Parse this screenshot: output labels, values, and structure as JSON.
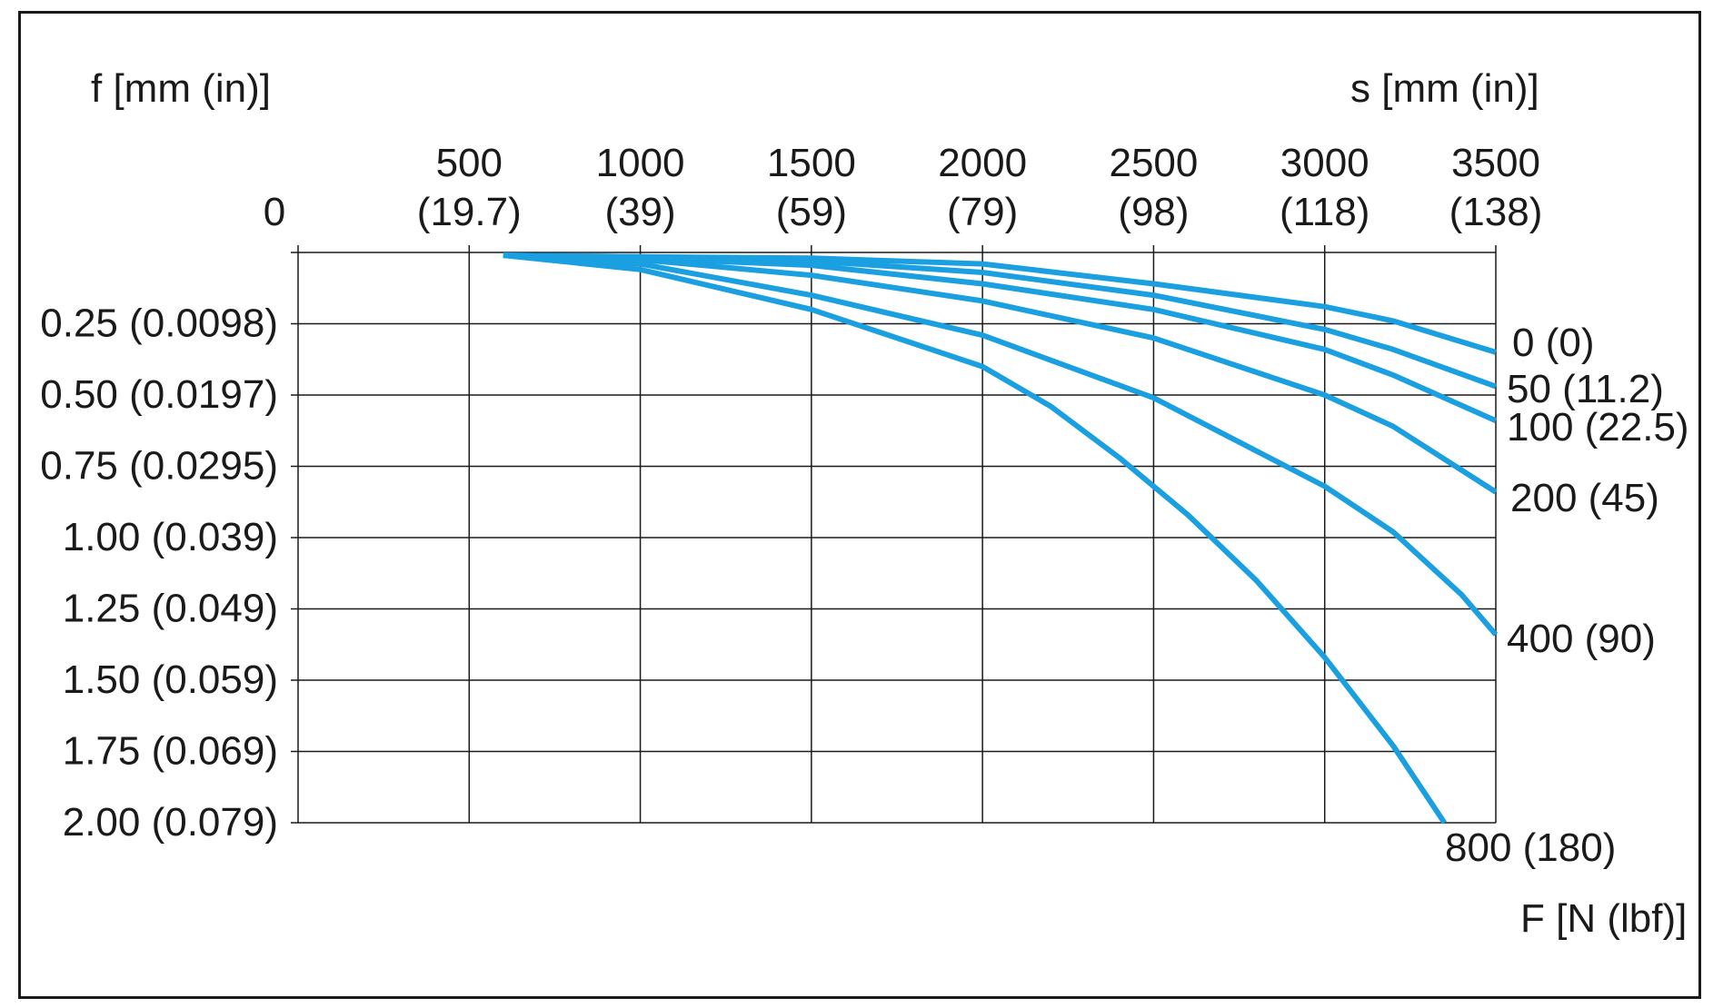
{
  "chart_data": {
    "type": "line",
    "x_axis": {
      "label": "s [mm (in)]",
      "position": "top",
      "range": [
        0,
        3500
      ],
      "ticks": [
        {
          "value": 0,
          "label": "0",
          "sub": ""
        },
        {
          "value": 500,
          "label": "500",
          "sub": "(19.7)"
        },
        {
          "value": 1000,
          "label": "1000",
          "sub": "(39)"
        },
        {
          "value": 1500,
          "label": "1500",
          "sub": "(59)"
        },
        {
          "value": 2000,
          "label": "2000",
          "sub": "(79)"
        },
        {
          "value": 2500,
          "label": "2500",
          "sub": "(98)"
        },
        {
          "value": 3000,
          "label": "3000",
          "sub": "(118)"
        },
        {
          "value": 3500,
          "label": "3500",
          "sub": "(138)"
        }
      ]
    },
    "y_axis": {
      "label": "f [mm (in)]",
      "range": [
        0,
        2.0
      ],
      "inverted": true,
      "ticks": [
        {
          "value": 0.25,
          "label": "0.25 (0.0098)"
        },
        {
          "value": 0.5,
          "label": "0.50 (0.0197)"
        },
        {
          "value": 0.75,
          "label": "0.75 (0.0295)"
        },
        {
          "value": 1.0,
          "label": "1.00 (0.039)"
        },
        {
          "value": 1.25,
          "label": "1.25 (0.049)"
        },
        {
          "value": 1.5,
          "label": "1.50 (0.059)"
        },
        {
          "value": 1.75,
          "label": "1.75 (0.069)"
        },
        {
          "value": 2.0,
          "label": "2.00 (0.079)"
        }
      ]
    },
    "series_axis_label": "F [N (lbf)]",
    "grid": true,
    "line_color": "#1a9fe0",
    "series": [
      {
        "name": "0 (0)",
        "points": [
          [
            600,
            0.01
          ],
          [
            1000,
            0.015
          ],
          [
            1500,
            0.02
          ],
          [
            2000,
            0.04
          ],
          [
            2500,
            0.11
          ],
          [
            3000,
            0.19
          ],
          [
            3200,
            0.24
          ],
          [
            3500,
            0.35
          ]
        ]
      },
      {
        "name": "50 (11.2)",
        "points": [
          [
            600,
            0.01
          ],
          [
            1000,
            0.015
          ],
          [
            1500,
            0.03
          ],
          [
            2000,
            0.07
          ],
          [
            2500,
            0.15
          ],
          [
            3000,
            0.27
          ],
          [
            3200,
            0.34
          ],
          [
            3500,
            0.47
          ]
        ]
      },
      {
        "name": "100 (22.5)",
        "points": [
          [
            600,
            0.01
          ],
          [
            1000,
            0.02
          ],
          [
            1500,
            0.045
          ],
          [
            2000,
            0.11
          ],
          [
            2500,
            0.2
          ],
          [
            3000,
            0.34
          ],
          [
            3200,
            0.43
          ],
          [
            3500,
            0.59
          ]
        ]
      },
      {
        "name": "200 (45)",
        "points": [
          [
            600,
            0.01
          ],
          [
            1000,
            0.025
          ],
          [
            1500,
            0.08
          ],
          [
            2000,
            0.17
          ],
          [
            2500,
            0.3
          ],
          [
            3000,
            0.5
          ],
          [
            3200,
            0.61
          ],
          [
            3500,
            0.84
          ]
        ]
      },
      {
        "name": "400 (90)",
        "points": [
          [
            600,
            0.01
          ],
          [
            1000,
            0.04
          ],
          [
            1500,
            0.15
          ],
          [
            2000,
            0.29
          ],
          [
            2500,
            0.51
          ],
          [
            3000,
            0.82
          ],
          [
            3200,
            0.98
          ],
          [
            3400,
            1.2
          ],
          [
            3500,
            1.34
          ]
        ]
      },
      {
        "name": "800 (180)",
        "points": [
          [
            600,
            0.01
          ],
          [
            1000,
            0.06
          ],
          [
            1500,
            0.2
          ],
          [
            2000,
            0.4
          ],
          [
            2200,
            0.54
          ],
          [
            2400,
            0.72
          ],
          [
            2600,
            0.92
          ],
          [
            2800,
            1.15
          ],
          [
            3000,
            1.42
          ],
          [
            3200,
            1.73
          ],
          [
            3350,
            2.0
          ]
        ]
      }
    ]
  }
}
